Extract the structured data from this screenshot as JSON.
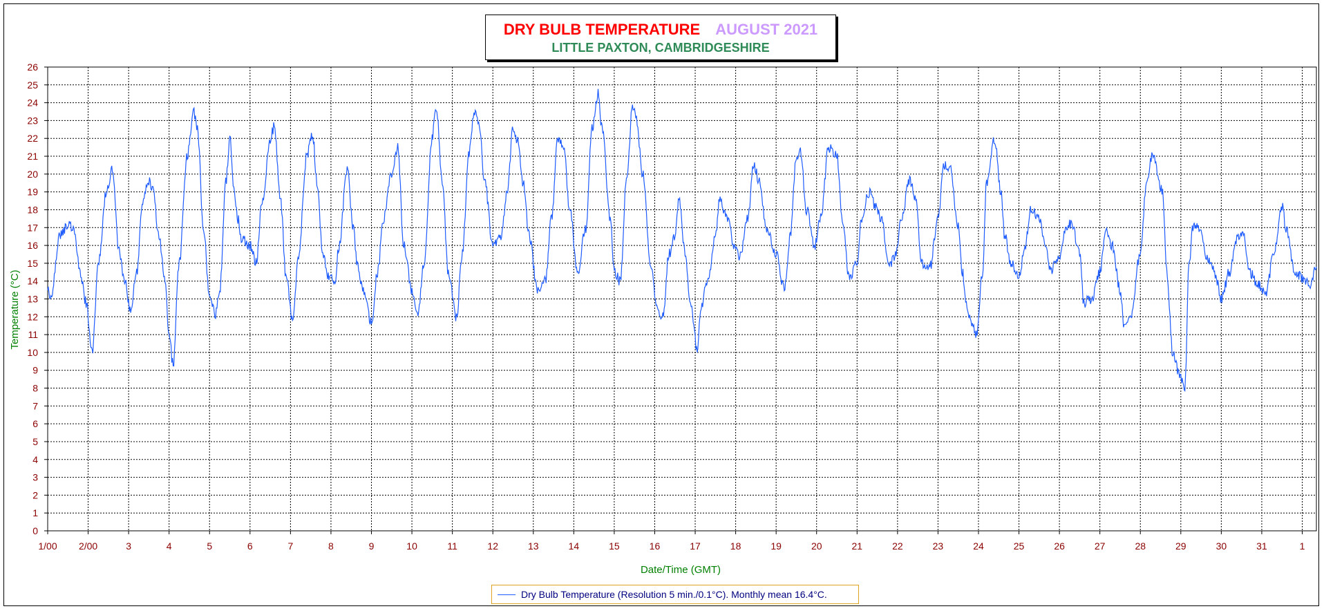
{
  "chart_data": {
    "type": "line",
    "title": "DRY BULB TEMPERATURE",
    "title_month": "AUGUST 2021",
    "subtitle": "LITTLE PAXTON, CAMBRIDGESHIRE",
    "xlabel": "Date/Time (GMT)",
    "ylabel": "Temperature (°C)",
    "ylim": [
      0,
      26
    ],
    "xlim_days": [
      1,
      32.35
    ],
    "grid": true,
    "x_tick_labels": [
      "1/00",
      "2/00",
      "3",
      "4",
      "5",
      "6",
      "7",
      "8",
      "9",
      "10",
      "11",
      "12",
      "13",
      "14",
      "15",
      "16",
      "17",
      "18",
      "19",
      "20",
      "21",
      "22",
      "23",
      "24",
      "25",
      "26",
      "27",
      "28",
      "29",
      "30",
      "31",
      "1"
    ],
    "y_tick_labels": [
      "0",
      "1",
      "2",
      "3",
      "4",
      "5",
      "6",
      "7",
      "8",
      "9",
      "10",
      "11",
      "12",
      "13",
      "14",
      "15",
      "16",
      "17",
      "18",
      "19",
      "20",
      "21",
      "22",
      "23",
      "24",
      "25",
      "26"
    ],
    "legend": {
      "label": "Dry Bulb Temperature (Resolution 5 min./0.1°C). Monthly mean 16.4°C.",
      "position": "bottom-center"
    },
    "colors": {
      "line": "#1e5cff",
      "tick_text": "#8b0000",
      "axis_title": "#008000",
      "title": "#ff0000",
      "title_month": "#cc99ff",
      "subtitle": "#2e8b57"
    },
    "series": [
      {
        "name": "Dry Bulb Temperature",
        "x": [
          1.0,
          1.08,
          1.3,
          1.5,
          1.65,
          1.8,
          1.95,
          2.1,
          2.25,
          2.45,
          2.6,
          2.75,
          2.9,
          3.05,
          3.2,
          3.35,
          3.5,
          3.6,
          3.75,
          3.9,
          4.0,
          4.1,
          4.25,
          4.45,
          4.6,
          4.7,
          4.85,
          5.0,
          5.15,
          5.25,
          5.4,
          5.5,
          5.6,
          5.7,
          5.8,
          6.0,
          6.15,
          6.3,
          6.5,
          6.6,
          6.75,
          6.9,
          7.05,
          7.2,
          7.4,
          7.55,
          7.65,
          7.8,
          7.95,
          8.1,
          8.2,
          8.4,
          8.55,
          8.65,
          8.8,
          9.0,
          9.15,
          9.3,
          9.5,
          9.65,
          9.8,
          10.0,
          10.15,
          10.3,
          10.5,
          10.6,
          10.75,
          10.9,
          11.1,
          11.25,
          11.4,
          11.55,
          11.65,
          11.8,
          12.0,
          12.2,
          12.35,
          12.5,
          12.6,
          12.75,
          12.9,
          13.1,
          13.3,
          13.45,
          13.6,
          13.75,
          13.9,
          14.1,
          14.3,
          14.45,
          14.6,
          14.7,
          14.9,
          15.0,
          15.15,
          15.3,
          15.45,
          15.55,
          15.7,
          15.9,
          16.05,
          16.2,
          16.35,
          16.5,
          16.6,
          16.75,
          16.9,
          17.05,
          17.15,
          17.3,
          17.5,
          17.6,
          17.8,
          17.95,
          18.1,
          18.3,
          18.45,
          18.6,
          18.75,
          19.0,
          19.2,
          19.35,
          19.5,
          19.6,
          19.75,
          19.95,
          20.1,
          20.3,
          20.5,
          20.65,
          20.8,
          21.0,
          21.1,
          21.3,
          21.45,
          21.6,
          21.8,
          21.95,
          22.1,
          22.3,
          22.45,
          22.6,
          22.8,
          23.0,
          23.15,
          23.3,
          23.5,
          23.6,
          23.75,
          23.95,
          24.1,
          24.2,
          24.4,
          24.55,
          24.65,
          24.8,
          25.0,
          25.15,
          25.3,
          25.5,
          25.6,
          25.8,
          26.0,
          26.15,
          26.3,
          26.5,
          26.6,
          26.8,
          27.0,
          27.15,
          27.3,
          27.5,
          27.6,
          27.75,
          28.0,
          28.15,
          28.3,
          28.55,
          28.65,
          28.8,
          29.0,
          29.1,
          29.2,
          29.3,
          29.5,
          29.6,
          29.75,
          29.9,
          30.0,
          30.2,
          30.4,
          30.55,
          30.7,
          30.9,
          31.1,
          31.3,
          31.5,
          31.6,
          31.8,
          32.0,
          32.2,
          32.35
        ],
        "y": [
          13.8,
          13.0,
          16.5,
          17.2,
          16.8,
          14.5,
          12.8,
          10.0,
          15.0,
          19.0,
          20.3,
          16.0,
          14.0,
          12.4,
          14.5,
          18.5,
          19.6,
          19.2,
          16.5,
          14.2,
          11.0,
          9.3,
          15.0,
          21.0,
          23.5,
          22.5,
          17.0,
          13.0,
          12.2,
          13.5,
          19.5,
          22.0,
          19.0,
          17.5,
          16.3,
          16.0,
          15.0,
          18.5,
          22.0,
          22.7,
          18.5,
          14.0,
          11.7,
          15.5,
          21.0,
          22.2,
          19.5,
          15.5,
          14.2,
          14.0,
          16.0,
          20.3,
          17.0,
          15.0,
          13.5,
          11.7,
          14.5,
          17.5,
          20.0,
          21.5,
          16.0,
          13.5,
          12.2,
          15.0,
          22.0,
          23.8,
          19.5,
          14.5,
          12.0,
          15.5,
          21.0,
          23.5,
          23.0,
          19.5,
          16.0,
          16.5,
          19.0,
          22.5,
          22.0,
          19.5,
          16.5,
          13.5,
          14.0,
          17.5,
          22.0,
          21.5,
          18.0,
          14.5,
          17.0,
          22.5,
          24.5,
          22.5,
          17.5,
          14.5,
          14.0,
          19.5,
          23.8,
          23.0,
          20.0,
          15.0,
          12.5,
          12.0,
          15.5,
          16.5,
          18.7,
          15.5,
          12.5,
          10.2,
          12.5,
          14.0,
          16.5,
          18.5,
          17.5,
          16.0,
          15.3,
          17.5,
          20.5,
          19.5,
          17.0,
          15.5,
          13.6,
          16.5,
          21.0,
          21.3,
          18.0,
          16.0,
          17.5,
          21.5,
          21.0,
          17.0,
          14.2,
          15.0,
          17.5,
          19.0,
          18.2,
          17.5,
          14.8,
          15.5,
          17.5,
          19.7,
          18.5,
          15.0,
          14.8,
          17.5,
          20.5,
          20.4,
          17.0,
          14.5,
          12.0,
          11.0,
          14.5,
          19.5,
          22.0,
          19.0,
          16.5,
          15.0,
          14.2,
          16.0,
          18.0,
          17.5,
          16.5,
          14.6,
          15.5,
          17.0,
          17.2,
          15.5,
          12.8,
          13.0,
          14.5,
          16.8,
          16.0,
          13.5,
          11.3,
          12.0,
          15.5,
          19.5,
          21.0,
          19.0,
          14.5,
          10.0,
          8.5,
          8.0,
          15.0,
          17.0,
          17.0,
          15.5,
          15.0,
          14.0,
          13.0,
          14.5,
          16.5,
          16.7,
          14.5,
          13.8,
          13.3,
          15.5,
          18.2,
          17.0,
          14.6,
          14.2,
          13.8,
          14.8
        ]
      }
    ]
  }
}
